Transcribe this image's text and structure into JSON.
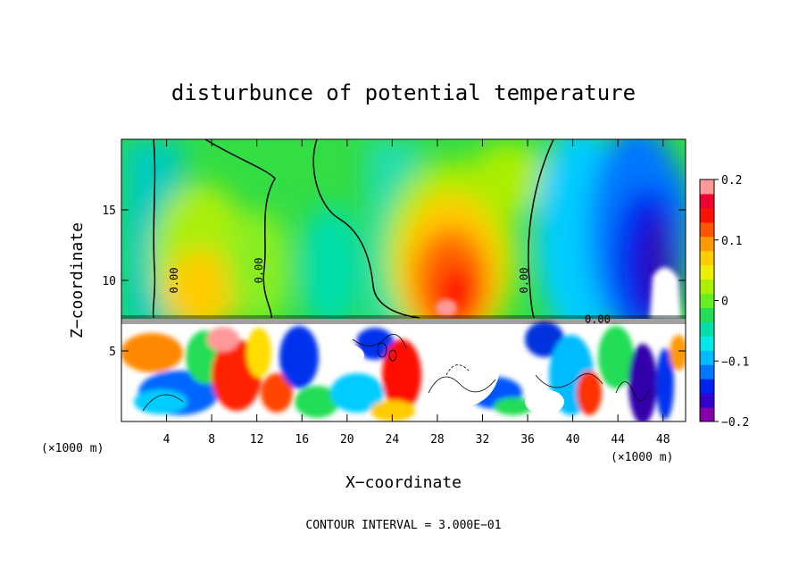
{
  "chart_data": {
    "type": "heatmap",
    "title": "disturbunce of potential temperature",
    "xlabel": "X−coordinate",
    "ylabel": "Z−coordinate",
    "x_unit": "(×1000 m)",
    "x_unit_right": "(×1000 m)",
    "xlim": [
      0,
      50
    ],
    "ylim": [
      0,
      20
    ],
    "x_ticks": [
      4,
      8,
      12,
      16,
      20,
      24,
      28,
      32,
      36,
      40,
      44,
      48
    ],
    "x_tick_labels": [
      "4",
      "8",
      "12",
      "16",
      "20",
      "24",
      "28",
      "32",
      "36",
      "40",
      "44",
      "48"
    ],
    "y_ticks": [
      5,
      10,
      15
    ],
    "y_tick_labels": [
      "5",
      "10",
      "15"
    ],
    "colorbar": {
      "range": [
        -0.2,
        0.2
      ],
      "ticks": [
        0.2,
        0.1,
        0,
        -0.1,
        -0.2
      ],
      "tick_labels": [
        "0.2",
        "0.1",
        "0",
        "−0.1",
        "−0.2"
      ],
      "colors": [
        "#8800aa",
        "#3300cc",
        "#0022ee",
        "#0077ff",
        "#00bbff",
        "#00e8e8",
        "#00ddaa",
        "#22dd55",
        "#66ee22",
        "#aaee00",
        "#eeee00",
        "#ffcc00",
        "#ff9900",
        "#ff5500",
        "#ff1100",
        "#ee0033",
        "#ff9999"
      ]
    },
    "contour_labels": [
      {
        "text": "0.00",
        "x": 5.0,
        "z": 10.0
      },
      {
        "text": "0.00",
        "x": 12.5,
        "z": 10.7
      },
      {
        "text": "0.00",
        "x": 36.0,
        "z": 10.0
      },
      {
        "text": "0.00",
        "x": 42.2,
        "z": 7.0
      }
    ],
    "footer": "CONTOUR INTERVAL = 3.000E−01"
  },
  "colors": {
    "frame": "#000000",
    "background": "#ffffff"
  }
}
